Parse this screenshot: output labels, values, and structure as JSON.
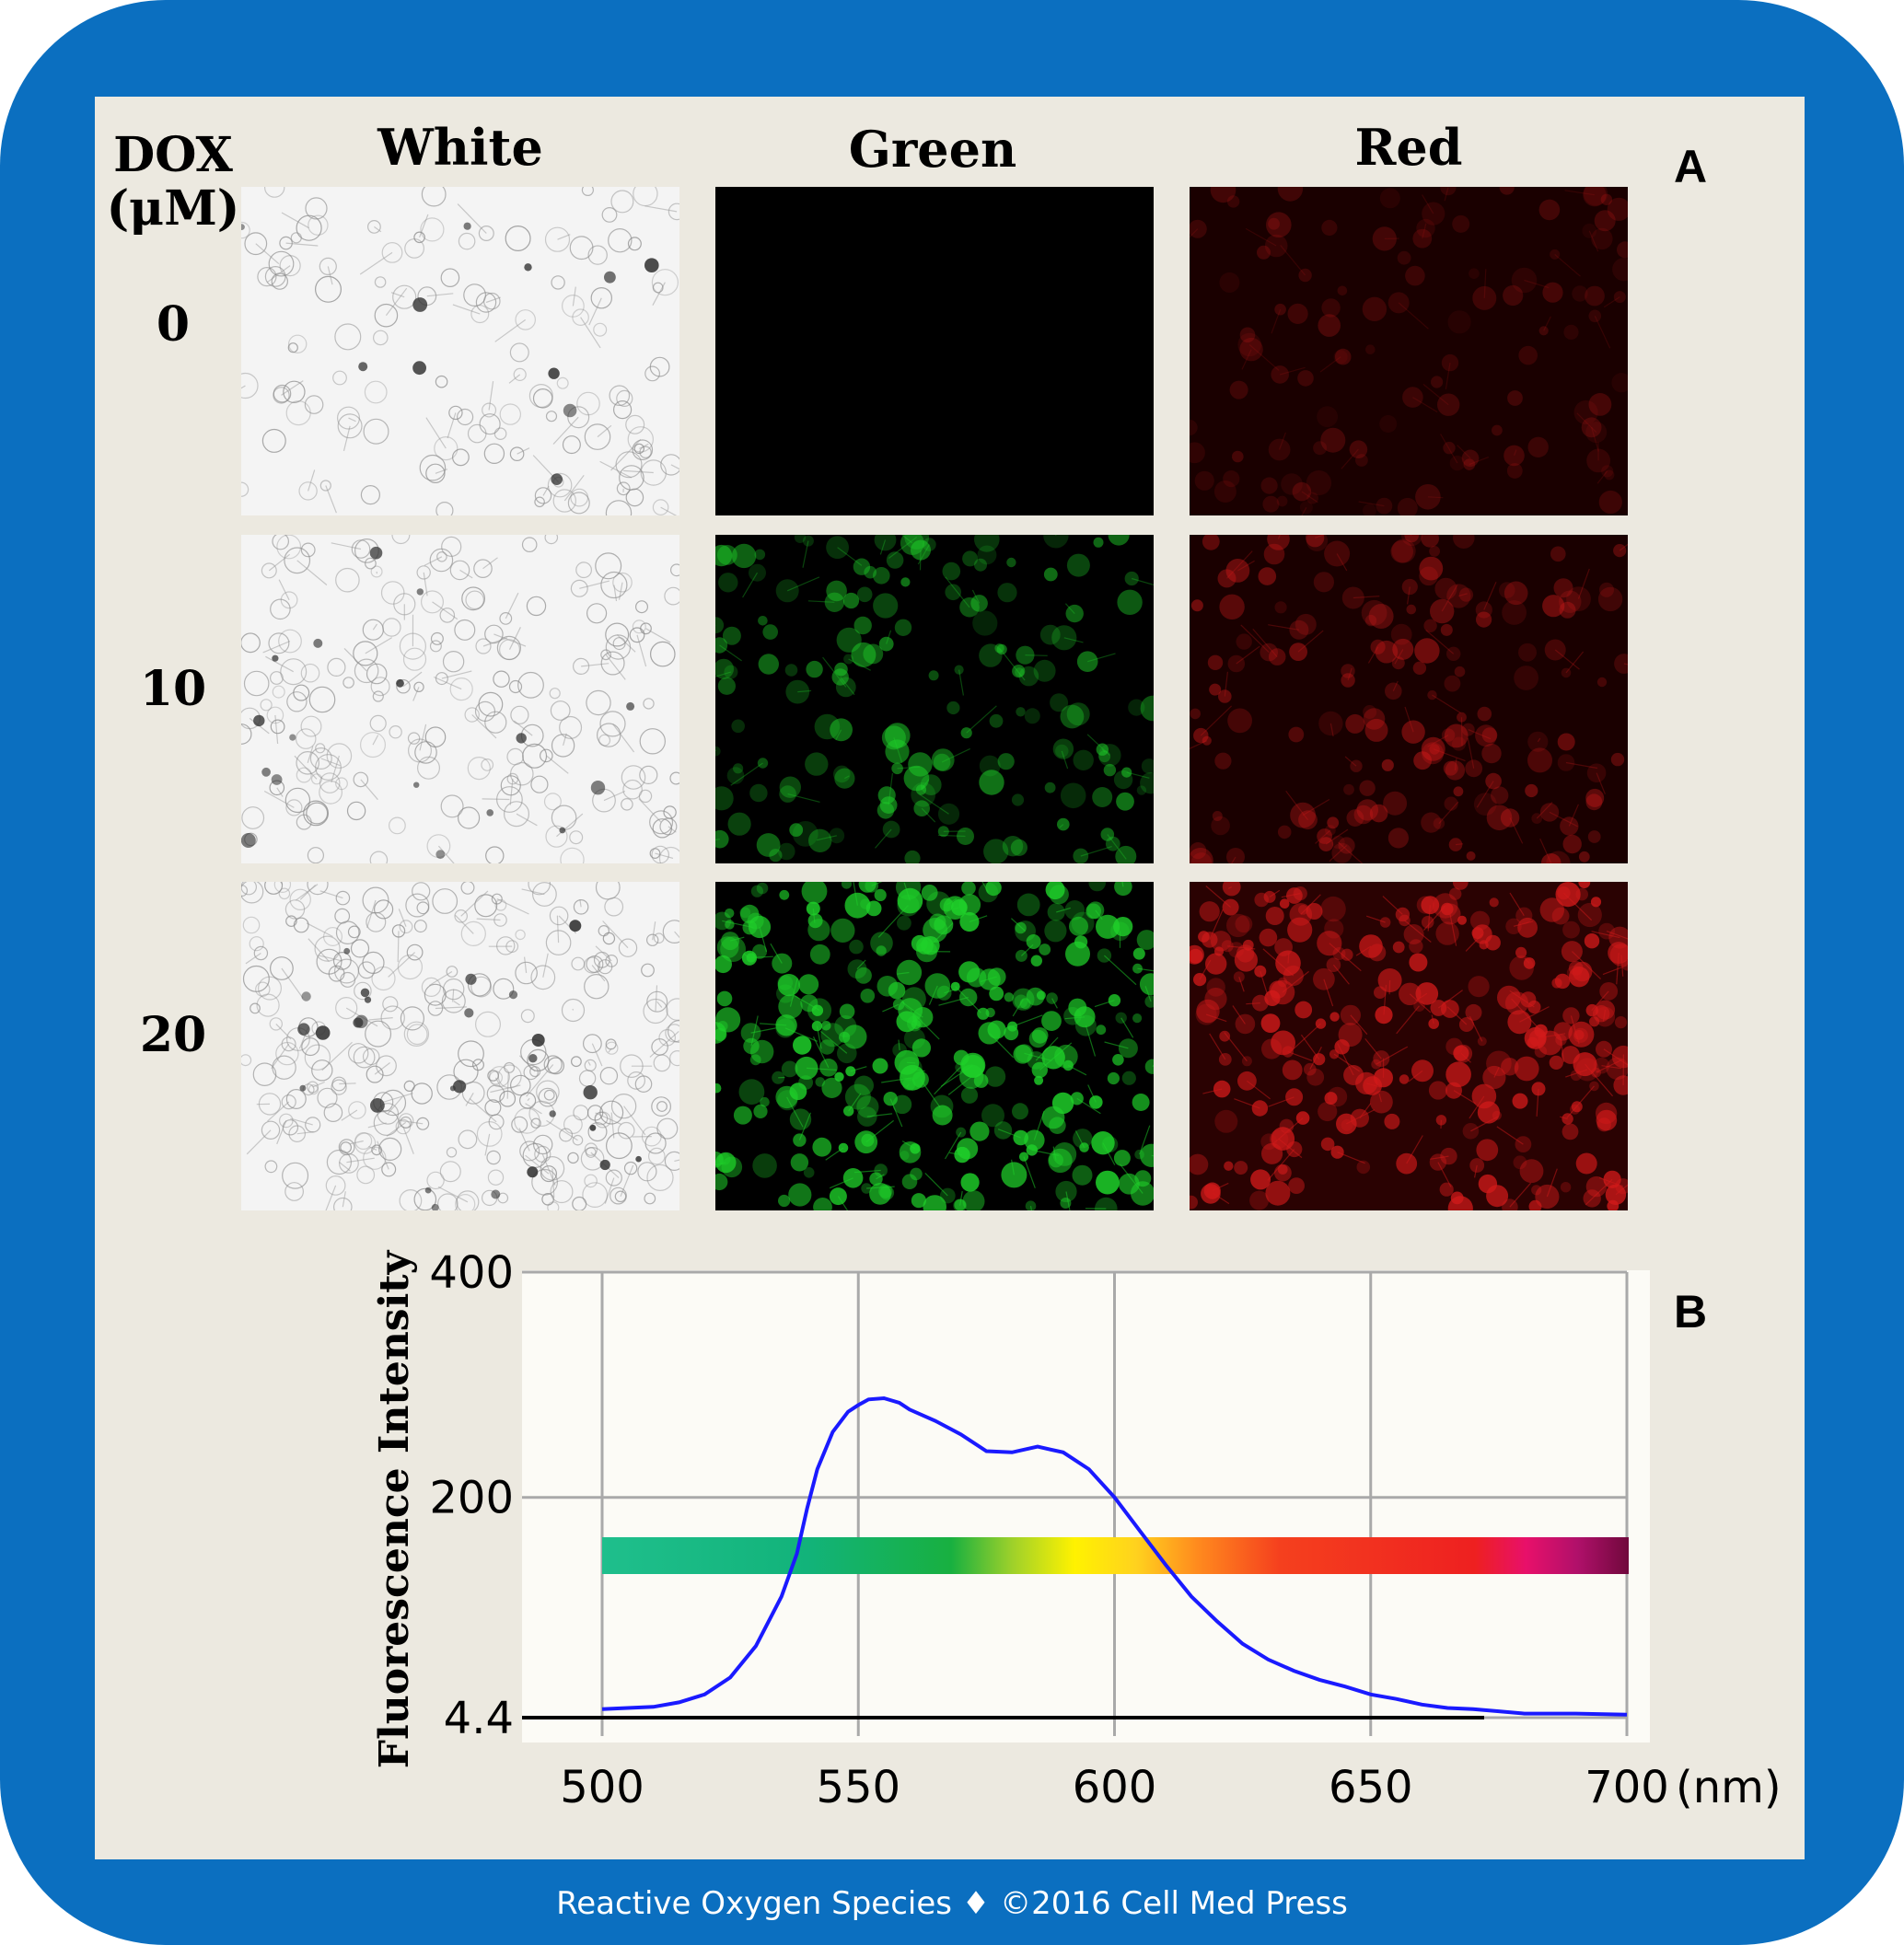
{
  "figure": {
    "panel_a_label": "A",
    "panel_b_label": "B",
    "row_header_line1": "DOX",
    "row_header_line2": "(μM)",
    "columns": [
      "White",
      "Green",
      "Red"
    ],
    "rows": [
      "0",
      "10",
      "20"
    ],
    "footer": "Reactive Oxygen Species ♦ ©2016 Cell Med Press"
  },
  "colors": {
    "frame": "#0b6fc0",
    "panel_bg": "#ece9e0",
    "curve": "#1a1aff",
    "baseline": "#000000"
  },
  "chart_data": {
    "type": "line",
    "ylabel": "Fluorescence Intensity",
    "x_unit": "(nm)",
    "x_ticks": [
      "500",
      "550",
      "600",
      "650",
      "700"
    ],
    "y_ticks": [
      "4.4",
      "200",
      "400"
    ],
    "xlim": [
      500,
      700
    ],
    "ylim": [
      4.4,
      400
    ],
    "grid": true,
    "spectrum_bar": "color band spanning 500-700 nm from green through yellow, orange, red to purple",
    "series": [
      {
        "x": [
          500,
          505,
          510,
          515,
          520,
          525,
          530,
          535,
          538,
          540,
          542,
          545,
          548,
          550,
          552,
          555,
          558,
          560,
          565,
          570,
          575,
          580,
          585,
          590,
          595,
          600,
          605,
          610,
          615,
          620,
          625,
          630,
          635,
          640,
          645,
          650,
          655,
          660,
          665,
          670,
          675,
          680,
          690,
          700
        ],
        "y": [
          12,
          13,
          14,
          18,
          25,
          40,
          68,
          112,
          150,
          190,
          225,
          258,
          276,
          282,
          287,
          288,
          284,
          278,
          268,
          256,
          241,
          240,
          245,
          240,
          225,
          200,
          170,
          140,
          112,
          90,
          70,
          56,
          46,
          38,
          32,
          25,
          21,
          16,
          13,
          12,
          10,
          8,
          8,
          7
        ]
      }
    ]
  }
}
